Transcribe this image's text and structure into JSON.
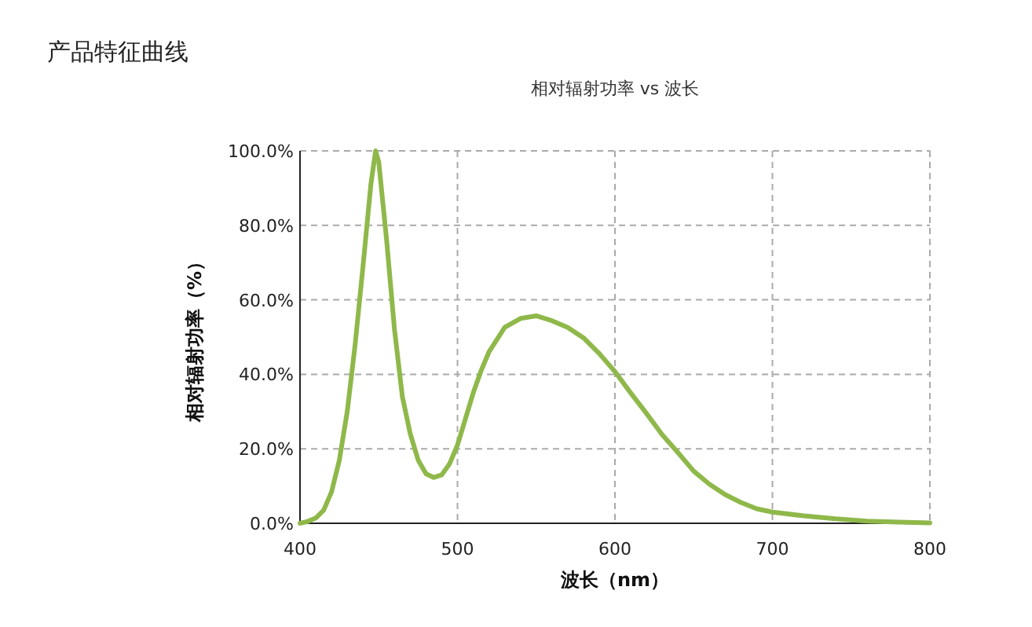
{
  "chart_data": {
    "type": "line",
    "title": "产品特征曲线",
    "subtitle": "相对辐射功率 vs 波长",
    "xlabel": "波长（nm）",
    "ylabel": "相对辐射功率（%）",
    "x": [
      400,
      405,
      410,
      415,
      420,
      425,
      430,
      435,
      440,
      445,
      448,
      450,
      455,
      460,
      465,
      470,
      475,
      480,
      485,
      490,
      495,
      500,
      505,
      510,
      515,
      520,
      530,
      540,
      550,
      560,
      570,
      580,
      590,
      600,
      610,
      620,
      630,
      640,
      650,
      660,
      670,
      680,
      690,
      700,
      720,
      740,
      760,
      780,
      800
    ],
    "series": [
      {
        "color": "#8fb84a",
        "values": [
          0,
          0.5,
          1.4,
          3.5,
          8.4,
          17,
          30,
          48,
          69,
          91,
          100,
          97,
          76,
          52,
          34,
          24,
          17,
          13.3,
          12.3,
          13,
          16,
          21,
          28,
          35,
          41,
          46,
          52.6,
          55,
          55.7,
          54.4,
          52.6,
          49.8,
          45.6,
          40.7,
          35,
          29.5,
          23.8,
          19,
          14,
          10.5,
          7.7,
          5.6,
          3.9,
          3,
          2,
          1.2,
          0.6,
          0.3,
          0.1
        ]
      }
    ],
    "xlim": [
      400,
      800
    ],
    "xticks": [
      400,
      500,
      600,
      700,
      800
    ],
    "ylim": [
      0,
      100
    ],
    "yticks": [
      {
        "value": 0,
        "label": "0.0%"
      },
      {
        "value": 20,
        "label": "20.0%"
      },
      {
        "value": 40,
        "label": "40.0%"
      },
      {
        "value": 60,
        "label": "60.0%"
      },
      {
        "value": 80,
        "label": "80.0%"
      },
      {
        "value": 100,
        "label": "100.0%"
      }
    ],
    "grid": true,
    "marker": "none",
    "line_style": "solid"
  }
}
